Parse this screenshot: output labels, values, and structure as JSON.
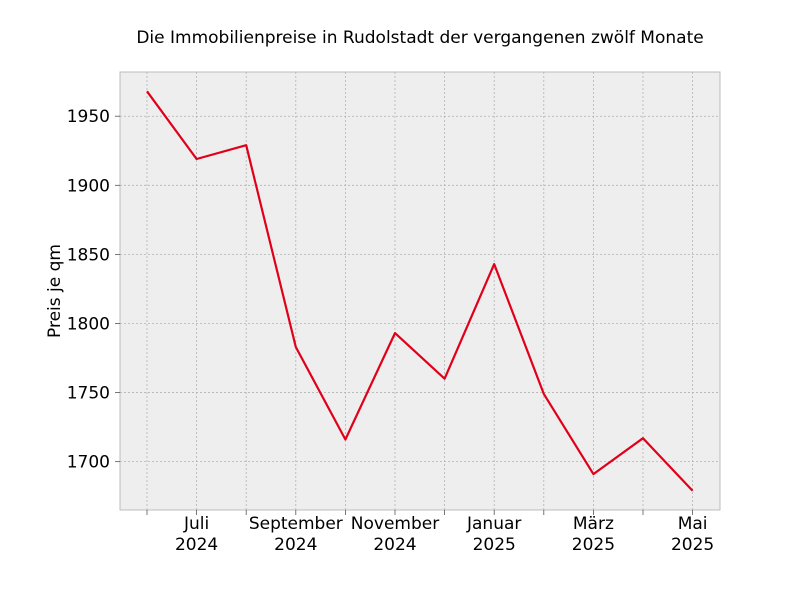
{
  "chart_data": {
    "type": "line",
    "title": "Die Immobilienpreise in Rudolstadt der vergangenen zwölf Monate",
    "xlabel": "",
    "ylabel": "Preis je qm",
    "x": [
      "2024-06",
      "2024-07",
      "2024-08",
      "2024-09",
      "2024-10",
      "2024-11",
      "2024-12",
      "2025-01",
      "2025-02",
      "2025-03",
      "2025-04",
      "2025-05"
    ],
    "x_tick_labels": [
      {
        "x": "2024-07",
        "line1": "Juli",
        "line2": "2024"
      },
      {
        "x": "2024-09",
        "line1": "September",
        "line2": "2024"
      },
      {
        "x": "2024-11",
        "line1": "November",
        "line2": "2024"
      },
      {
        "x": "2025-01",
        "line1": "Januar",
        "line2": "2025"
      },
      {
        "x": "2025-03",
        "line1": "März",
        "line2": "2025"
      },
      {
        "x": "2025-05",
        "line1": "Mai",
        "line2": "2025"
      }
    ],
    "series": [
      {
        "values": [
          1968,
          1919,
          1929,
          1783,
          1716,
          1793,
          1760,
          1843,
          1749,
          1691,
          1717,
          1679
        ],
        "color": "#e0001a"
      }
    ],
    "ylim": [
      1665,
      1982
    ],
    "yticks": [
      1700,
      1750,
      1800,
      1850,
      1900,
      1950
    ],
    "grid": true,
    "legend": "none",
    "background": "#eeeeee"
  }
}
